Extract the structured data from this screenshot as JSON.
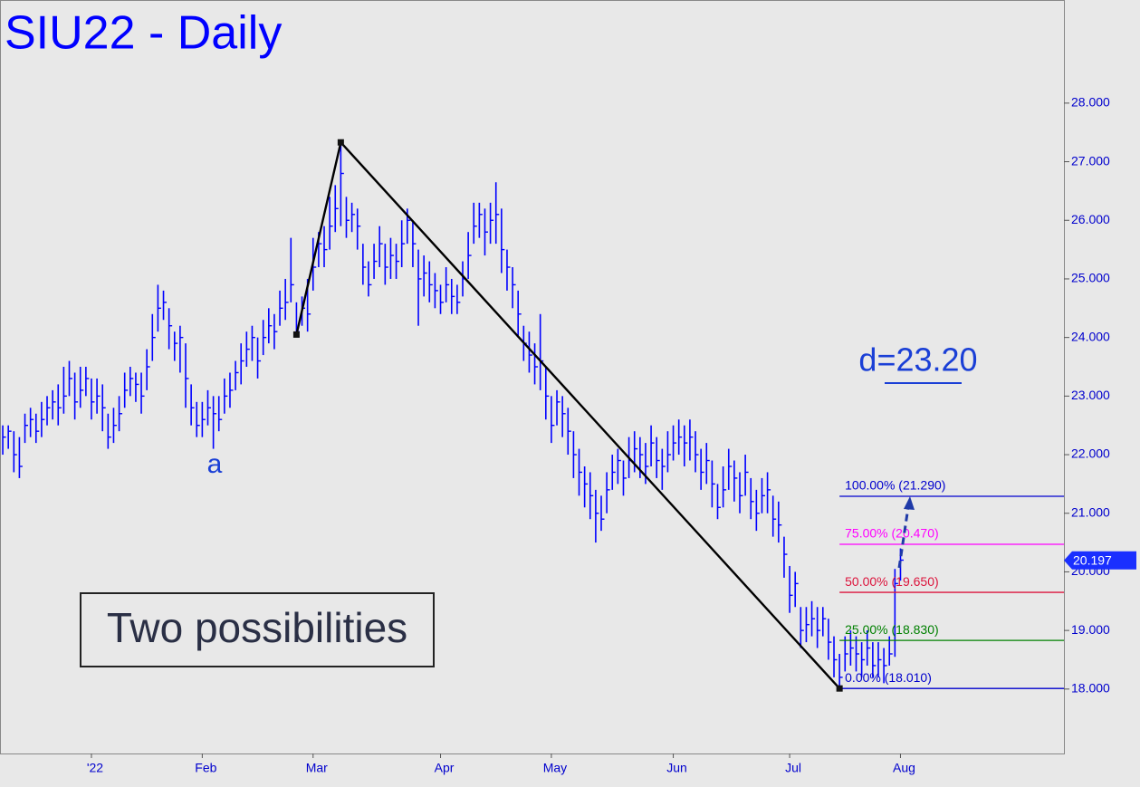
{
  "chart_data": {
    "type": "ohlc",
    "title": "SIU22 - Daily",
    "color": "#0000ff",
    "high": [
      22.5,
      22.5,
      22.4,
      22.3,
      22.7,
      22.8,
      22.7,
      22.9,
      23.0,
      23.1,
      23.2,
      23.5,
      23.6,
      23.4,
      23.5,
      23.5,
      23.3,
      23.3,
      23.2,
      22.7,
      22.8,
      23.0,
      23.4,
      23.5,
      23.4,
      23.4,
      23.8,
      24.4,
      24.9,
      24.8,
      24.5,
      24.1,
      24.2,
      23.9,
      23.2,
      22.9,
      22.9,
      23.1,
      23.0,
      23.0,
      23.3,
      23.4,
      23.6,
      23.9,
      24.1,
      24.2,
      24.0,
      24.3,
      24.5,
      24.4,
      24.8,
      25.0,
      25.7,
      24.6,
      24.7,
      25.0,
      25.7,
      25.8,
      25.9,
      26.4,
      26.6,
      27.33,
      26.4,
      26.3,
      26.2,
      25.6,
      25.3,
      25.6,
      25.9,
      25.6,
      25.7,
      25.6,
      26.0,
      26.2,
      26.0,
      25.5,
      25.4,
      25.3,
      25.1,
      24.9,
      25.2,
      25.0,
      24.9,
      25.3,
      25.8,
      26.3,
      26.3,
      26.2,
      26.3,
      26.65,
      26.2,
      25.5,
      25.2,
      24.8,
      24.2,
      24.1,
      23.9,
      24.4,
      23.5,
      23.0,
      23.1,
      23.0,
      22.8,
      22.4,
      22.1,
      21.8,
      21.7,
      21.4,
      21.3,
      21.7,
      22.0,
      22.1,
      21.9,
      22.3,
      22.4,
      22.3,
      22.2,
      22.5,
      22.3,
      22.1,
      22.4,
      22.5,
      22.6,
      22.5,
      22.6,
      22.4,
      22.1,
      22.2,
      21.9,
      21.5,
      21.8,
      22.1,
      21.9,
      21.7,
      22.0,
      21.6,
      21.4,
      21.6,
      21.7,
      21.3,
      21.2,
      20.6,
      20.1,
      20.0,
      19.4,
      19.4,
      19.5,
      19.4,
      19.4,
      19.2,
      18.9,
      18.6,
      18.9,
      19.0,
      18.9,
      18.8,
      19.0,
      18.8,
      18.8,
      18.7,
      18.9,
      20.05,
      20.4
    ],
    "low": [
      22.0,
      22.1,
      21.7,
      21.6,
      22.2,
      22.3,
      22.2,
      22.3,
      22.5,
      22.6,
      22.5,
      22.7,
      23.0,
      22.6,
      22.8,
      23.0,
      22.6,
      22.7,
      22.4,
      22.1,
      22.2,
      22.4,
      22.8,
      23.0,
      22.9,
      22.7,
      23.1,
      23.6,
      24.1,
      24.3,
      23.8,
      23.6,
      23.4,
      22.8,
      22.5,
      22.3,
      22.3,
      22.5,
      22.1,
      22.4,
      22.7,
      22.8,
      23.1,
      23.2,
      23.5,
      23.6,
      23.3,
      23.7,
      23.9,
      23.8,
      24.2,
      24.3,
      24.6,
      24.05,
      24.2,
      24.1,
      24.8,
      25.2,
      25.2,
      25.5,
      25.8,
      25.9,
      25.7,
      25.8,
      25.5,
      24.9,
      24.7,
      25.0,
      25.2,
      24.9,
      25.0,
      25.0,
      25.2,
      25.6,
      25.2,
      24.2,
      24.7,
      24.6,
      24.5,
      24.4,
      24.6,
      24.4,
      24.4,
      24.7,
      25.0,
      25.6,
      25.7,
      25.4,
      25.6,
      25.6,
      25.1,
      24.8,
      24.5,
      24.0,
      23.6,
      23.4,
      23.2,
      23.1,
      22.6,
      22.2,
      22.5,
      22.3,
      22.0,
      21.6,
      21.3,
      21.1,
      20.9,
      20.5,
      20.7,
      21.0,
      21.4,
      21.5,
      21.3,
      21.6,
      21.7,
      21.6,
      21.5,
      21.8,
      21.6,
      21.4,
      21.7,
      21.9,
      22.0,
      21.8,
      21.9,
      21.7,
      21.4,
      21.5,
      21.1,
      20.9,
      21.1,
      21.4,
      21.2,
      21.0,
      21.3,
      20.9,
      20.7,
      21.0,
      21.0,
      20.6,
      20.5,
      19.9,
      19.3,
      19.4,
      18.7,
      18.8,
      18.9,
      18.7,
      18.9,
      18.5,
      18.2,
      18.01,
      18.3,
      18.4,
      18.3,
      18.2,
      18.4,
      18.2,
      18.2,
      18.1,
      18.4,
      18.55,
      19.85
    ],
    "close": [
      22.3,
      22.4,
      22.0,
      21.8,
      22.5,
      22.6,
      22.4,
      22.6,
      22.8,
      22.9,
      22.8,
      23.0,
      23.3,
      22.9,
      23.1,
      23.3,
      22.9,
      23.0,
      22.8,
      22.3,
      22.5,
      22.7,
      23.1,
      23.3,
      23.2,
      23.0,
      23.5,
      24.0,
      24.5,
      24.6,
      24.2,
      23.9,
      24.0,
      23.3,
      22.8,
      22.5,
      22.6,
      22.8,
      22.7,
      22.6,
      23.0,
      23.1,
      23.4,
      23.6,
      23.8,
      24.0,
      23.6,
      24.0,
      24.2,
      24.1,
      24.5,
      24.6,
      24.9,
      24.1,
      24.5,
      24.4,
      25.2,
      25.6,
      25.5,
      25.9,
      26.2,
      26.8,
      26.0,
      26.1,
      25.9,
      25.2,
      24.9,
      25.3,
      25.6,
      25.2,
      25.4,
      25.3,
      25.6,
      26.0,
      25.6,
      25.0,
      25.1,
      24.9,
      24.8,
      24.6,
      24.9,
      24.7,
      24.6,
      25.0,
      25.4,
      25.9,
      26.1,
      25.8,
      26.0,
      26.1,
      25.5,
      25.2,
      24.9,
      24.4,
      23.9,
      23.7,
      23.5,
      23.6,
      23.0,
      22.5,
      22.9,
      22.7,
      22.4,
      22.0,
      21.7,
      21.5,
      21.3,
      21.0,
      20.9,
      21.4,
      21.7,
      21.9,
      21.6,
      21.9,
      22.1,
      22.0,
      21.8,
      22.2,
      21.9,
      21.8,
      22.0,
      22.2,
      22.3,
      22.2,
      22.3,
      22.0,
      21.7,
      21.9,
      21.5,
      21.1,
      21.4,
      21.8,
      21.6,
      21.3,
      21.7,
      21.2,
      21.0,
      21.3,
      21.4,
      20.9,
      20.8,
      20.3,
      19.6,
      19.8,
      19.0,
      19.1,
      19.2,
      19.0,
      19.2,
      18.8,
      18.5,
      18.2,
      18.6,
      18.7,
      18.6,
      18.5,
      18.7,
      18.4,
      18.5,
      18.4,
      18.6,
      19.8,
      20.2
    ],
    "xlim": [
      -0.5,
      191.5
    ],
    "xticks": [
      {
        "value": 16,
        "label": "'22"
      },
      {
        "value": 36,
        "label": "Feb"
      },
      {
        "value": 56,
        "label": "Mar"
      },
      {
        "value": 79,
        "label": "Apr"
      },
      {
        "value": 99,
        "label": "May"
      },
      {
        "value": 121,
        "label": "Jun"
      },
      {
        "value": 142,
        "label": "Jul"
      },
      {
        "value": 162,
        "label": "Aug"
      }
    ],
    "ylim": [
      16.9,
      29.76
    ],
    "yticks": [
      {
        "value": 18,
        "label": "18.000"
      },
      {
        "value": 19,
        "label": "19.000"
      },
      {
        "value": 20,
        "label": "20.000"
      },
      {
        "value": 21,
        "label": "21.000"
      },
      {
        "value": 22,
        "label": "22.000"
      },
      {
        "value": 23,
        "label": "23.000"
      },
      {
        "value": 24,
        "label": "24.000"
      },
      {
        "value": 25,
        "label": "25.000"
      },
      {
        "value": 26,
        "label": "26.000"
      },
      {
        "value": 27,
        "label": "27.000"
      },
      {
        "value": 28,
        "label": "28.000"
      }
    ],
    "last_price": 20.197,
    "trendline": {
      "x": [
        53,
        61,
        151
      ],
      "y": [
        24.05,
        27.33,
        18.01
      ],
      "color": "#000000"
    },
    "fib_start": 151,
    "levels": [
      {
        "label": "100.00% (21.290)",
        "value": 21.29,
        "color": "#0000cd"
      },
      {
        "label": "75.00% (20.470)",
        "value": 20.47,
        "color": "#ff00ff"
      },
      {
        "label": "50.00% (19.650)",
        "value": 19.65,
        "color": "#dc143c"
      },
      {
        "label": "25.00% (18.830)",
        "value": 18.83,
        "color": "#008000"
      },
      {
        "label": "0.00% (18.010)",
        "value": 18.01,
        "color": "#0000cd"
      }
    ],
    "wave_label": "a",
    "target": "d=23.20",
    "note": "Two possibilities"
  }
}
